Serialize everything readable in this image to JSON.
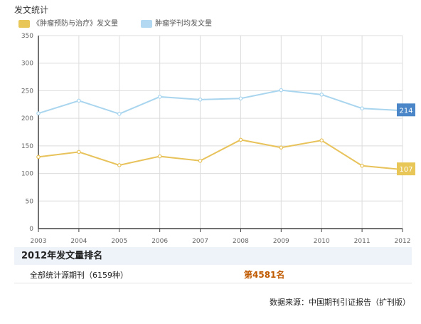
{
  "page_title": "发文统计",
  "legend": [
    {
      "label": "《肿瘤预防与治疗》发文量",
      "color": "#e8c657"
    },
    {
      "label": "肿瘤学刊均发文量",
      "color": "#b3d8f2"
    }
  ],
  "chart_data": {
    "type": "line",
    "x": [
      2003,
      2004,
      2005,
      2006,
      2007,
      2008,
      2009,
      2010,
      2011,
      2012
    ],
    "series": [
      {
        "name": "《肿瘤预防与治疗》发文量",
        "color": "#e8c25a",
        "values": [
          130,
          139,
          115,
          131,
          123,
          161,
          147,
          160,
          114,
          107
        ]
      },
      {
        "name": "肿瘤学刊均发文量",
        "color": "#a9d5ef",
        "values": [
          209,
          232,
          208,
          239,
          234,
          236,
          251,
          243,
          218,
          214
        ]
      }
    ],
    "ylim": [
      0,
      350
    ],
    "yticks": [
      0,
      50,
      100,
      150,
      200,
      250,
      300,
      350
    ],
    "end_labels": [
      {
        "text": "214",
        "value": 214,
        "color": "#4a86c8"
      },
      {
        "text": "107",
        "value": 107,
        "color": "#e8c657"
      }
    ],
    "grid": true,
    "legend_position": "top-left"
  },
  "ranking": {
    "header": "2012年发文量排名",
    "row_label": "全部统计源期刊（6159种）",
    "row_value": "第4581名"
  },
  "source": "数据来源：中国期刊引证报告（扩刊版）"
}
